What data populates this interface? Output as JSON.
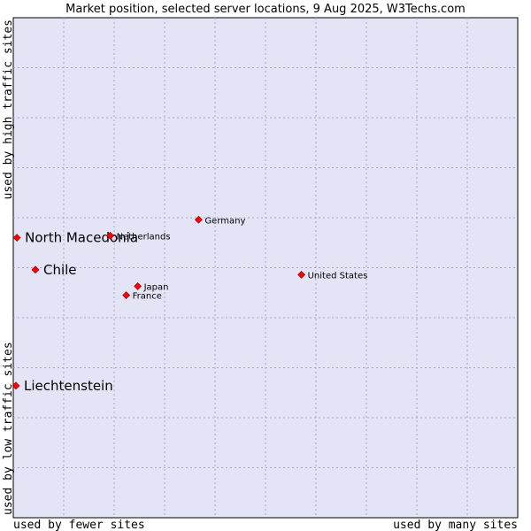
{
  "chart_data": {
    "type": "scatter",
    "title": "Market position, selected server locations, 9 Aug 2025, W3Techs.com",
    "xlabel_left": "used by fewer sites",
    "xlabel_right": "used by many sites",
    "ylabel_top": "used by high traffic sites",
    "ylabel_bottom": "used by low traffic sites",
    "xlim": [
      0,
      100
    ],
    "ylim": [
      0,
      100
    ],
    "grid": true,
    "colors": {
      "plot_background": "#e4e4f7",
      "grid": "#a8a8c8",
      "marker": "#ff0000",
      "marker_edge": "#990000"
    },
    "points": [
      {
        "name": "North Macedonia",
        "x": 0.2,
        "y": 56.0,
        "emphasis": true
      },
      {
        "name": "Chile",
        "x": 3.9,
        "y": 49.6,
        "emphasis": true
      },
      {
        "name": "Liechtenstein",
        "x": 0.0,
        "y": 26.4,
        "emphasis": true
      },
      {
        "name": "Netherlands",
        "x": 18.9,
        "y": 56.4,
        "emphasis": false
      },
      {
        "name": "Germany",
        "x": 36.6,
        "y": 59.6,
        "emphasis": false
      },
      {
        "name": "United States",
        "x": 57.2,
        "y": 48.6,
        "emphasis": false
      },
      {
        "name": "Japan",
        "x": 24.4,
        "y": 46.3,
        "emphasis": false
      },
      {
        "name": "France",
        "x": 22.1,
        "y": 44.5,
        "emphasis": false
      }
    ]
  }
}
